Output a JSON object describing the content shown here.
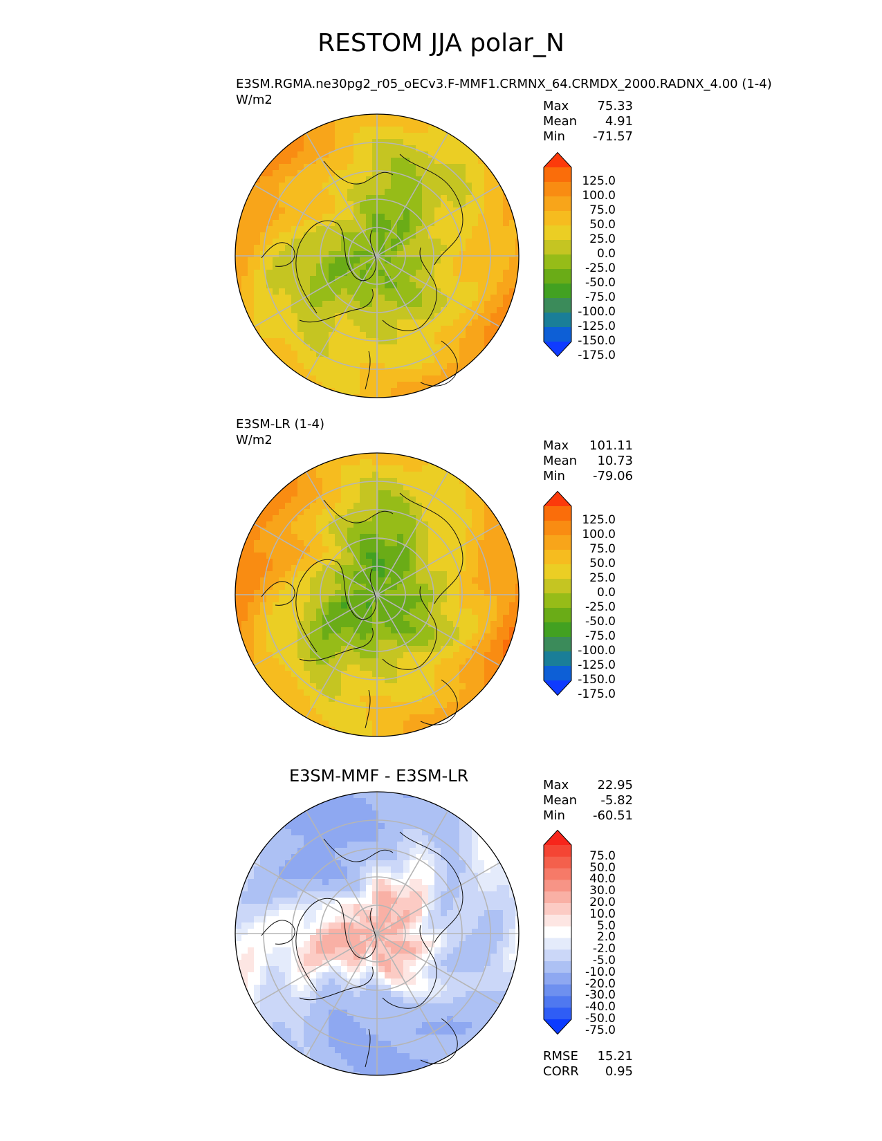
{
  "title": "RESTOM JJA polar_N",
  "colors": {
    "main_cmap": [
      "#0f3bff",
      "#0d5fd6",
      "#1a7e98",
      "#3b8b5a",
      "#42a121",
      "#6aac17",
      "#96bc18",
      "#c5c522",
      "#ebce24",
      "#f6bc1f",
      "#f8a51a",
      "#f98c12",
      "#fa6d0a",
      "#fc3a0b"
    ],
    "diff_cmap": [
      "#0b3bff",
      "#2f5df5",
      "#4f78f0",
      "#6e90ef",
      "#8ea8f1",
      "#adc1f4",
      "#cbd7f8",
      "#e4ebfb",
      "#ffffff",
      "#fde6e3",
      "#fccbc4",
      "#f9b0a5",
      "#f79486",
      "#f67a68",
      "#f4604c",
      "#f44534",
      "#f7251b"
    ]
  },
  "chart_data": [
    {
      "type": "heatmap",
      "projection": "north-polar-stereographic",
      "panel_title": "E3SM.RGMA.ne30pg2_r05_oECv3.F-MMF1.CRMNX_64.CRMDX_2000.RADNX_4.00 (1-4)",
      "units": "W/m2",
      "stats": {
        "max_label": "Max",
        "max": "75.33",
        "mean_label": "Mean",
        "mean": "4.91",
        "min_label": "Min",
        "min": "-71.57"
      },
      "colorbar_levels": [
        "125.0",
        "100.0",
        "75.0",
        "50.0",
        "25.0",
        "0.0",
        "-25.0",
        "-50.0",
        "-75.0",
        "-100.0",
        "-125.0",
        "-150.0",
        "-175.0"
      ],
      "field": {
        "center": -50,
        "inner": -40,
        "mid": -5,
        "outer": 20,
        "edge": 55
      }
    },
    {
      "type": "heatmap",
      "projection": "north-polar-stereographic",
      "panel_title": "E3SM-LR (1-4)",
      "units": "W/m2",
      "stats": {
        "max_label": "Max",
        "max": "101.11",
        "mean_label": "Mean",
        "mean": "10.73",
        "min_label": "Min",
        "min": "-79.06"
      },
      "colorbar_levels": [
        "125.0",
        "100.0",
        "75.0",
        "50.0",
        "25.0",
        "0.0",
        "-25.0",
        "-50.0",
        "-75.0",
        "-100.0",
        "-125.0",
        "-150.0",
        "-175.0"
      ],
      "field": {
        "center": -62,
        "inner": -55,
        "mid": -10,
        "outer": 30,
        "edge": 62
      }
    },
    {
      "type": "heatmap",
      "projection": "north-polar-stereographic",
      "panel_title": "E3SM-MMF - E3SM-LR",
      "stats": {
        "max_label": "Max",
        "max": "22.95",
        "mean_label": "Mean",
        "mean": "-5.82",
        "min_label": "Min",
        "min": "-60.51"
      },
      "colorbar_levels": [
        "75.0",
        "50.0",
        "40.0",
        "30.0",
        "20.0",
        "10.0",
        "5.0",
        "2.0",
        "-2.0",
        "-5.0",
        "-10.0",
        "-20.0",
        "-30.0",
        "-40.0",
        "-50.0",
        "-75.0"
      ],
      "metrics": {
        "rmse_label": "RMSE",
        "rmse": "15.21",
        "corr_label": "CORR",
        "corr": "0.95"
      },
      "field": {
        "center": 12,
        "inner": 8,
        "mid": -8,
        "outer": -15,
        "edge": -12
      }
    }
  ]
}
